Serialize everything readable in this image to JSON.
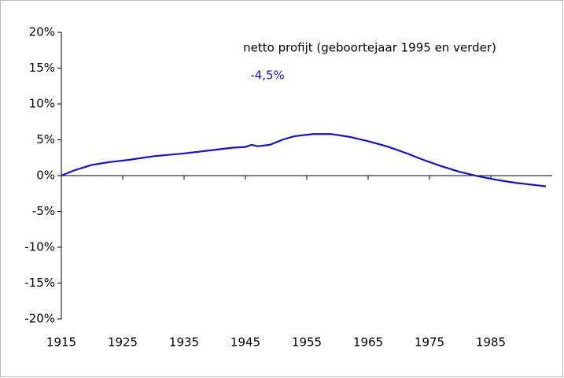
{
  "chart_data": {
    "type": "line",
    "title": "netto profijt  (geboortejaar 1995 en verder)",
    "annotation": "-4,5%",
    "x": [
      1915,
      1917,
      1920,
      1923,
      1926,
      1930,
      1935,
      1940,
      1943,
      1945,
      1946,
      1947,
      1949,
      1951,
      1953,
      1956,
      1959,
      1962,
      1965,
      1968,
      1971,
      1974,
      1977,
      1980,
      1983,
      1986,
      1989,
      1992,
      1994
    ],
    "series": [
      {
        "color": "#1010e0",
        "values": [
          0,
          0.7,
          1.5,
          1.9,
          2.2,
          2.7,
          3.1,
          3.6,
          3.9,
          4.0,
          4.3,
          4.1,
          4.3,
          5.0,
          5.5,
          5.8,
          5.8,
          5.4,
          4.8,
          4.1,
          3.2,
          2.2,
          1.3,
          0.5,
          -0.1,
          -0.6,
          -1.0,
          -1.3,
          -1.5
        ]
      }
    ],
    "xlim": [
      1915,
      1995
    ],
    "xticks": [
      1915,
      1925,
      1935,
      1945,
      1955,
      1965,
      1975,
      1985
    ],
    "ylim": [
      -20,
      20
    ],
    "yticks": [
      {
        "value": -20,
        "label": "-20%"
      },
      {
        "value": -15,
        "label": "-15%"
      },
      {
        "value": -10,
        "label": "-10%"
      },
      {
        "value": -5,
        "label": "-5%"
      },
      {
        "value": 0,
        "label": "0%"
      },
      {
        "value": 5,
        "label": "5%"
      },
      {
        "value": 10,
        "label": "10%"
      },
      {
        "value": 15,
        "label": "15%"
      },
      {
        "value": 20,
        "label": "20%"
      }
    ],
    "grid": false
  }
}
